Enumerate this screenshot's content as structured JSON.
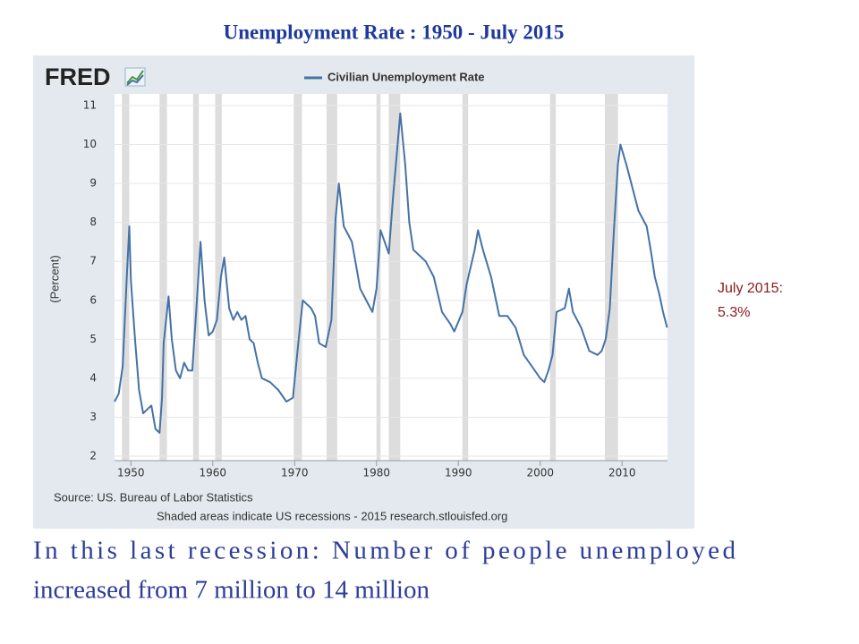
{
  "chart_data": {
    "type": "line",
    "title": "Unemployment Rate : 1950 -  July 2015",
    "brand": "FRED",
    "y_label": "(Percent)",
    "source": "Source: US. Bureau of Labor Statistics",
    "note": "Shaded areas indicate US recessions - 2015 research.stlouisfed.org",
    "annotation": [
      "July 2015:",
      "5.3%"
    ],
    "caption": [
      "In this last recession: Number of people unemployed",
      "increased from 7 million to 14 million"
    ],
    "xlim": [
      1948,
      2015.55
    ],
    "ylim": [
      2,
      11
    ],
    "xticks": [
      1950,
      1960,
      1970,
      1980,
      1990,
      2000,
      2010
    ],
    "yticks": [
      2,
      3,
      4,
      5,
      6,
      7,
      8,
      9,
      10,
      11
    ],
    "grid": true,
    "recession_color": "#dddddd",
    "recessions": [
      [
        1948.9,
        1949.8
      ],
      [
        1953.5,
        1954.4
      ],
      [
        1957.6,
        1958.3
      ],
      [
        1960.3,
        1961.1
      ],
      [
        1969.9,
        1970.9
      ],
      [
        1973.9,
        1975.2
      ],
      [
        1980.0,
        1980.5
      ],
      [
        1981.5,
        1982.9
      ],
      [
        1990.5,
        1991.2
      ],
      [
        2001.2,
        2001.9
      ],
      [
        2007.9,
        2009.5
      ]
    ],
    "x": [
      1948.0,
      1948.5,
      1949.0,
      1949.5,
      1949.8,
      1950.0,
      1950.5,
      1951.0,
      1951.5,
      1952.0,
      1952.5,
      1953.0,
      1953.5,
      1953.8,
      1954.0,
      1954.6,
      1955.0,
      1955.5,
      1956.0,
      1956.5,
      1957.0,
      1957.5,
      1958.0,
      1958.5,
      1959.0,
      1959.5,
      1960.0,
      1960.5,
      1961.0,
      1961.4,
      1962.0,
      1962.5,
      1963.0,
      1963.5,
      1964.0,
      1964.5,
      1965.0,
      1965.5,
      1966.0,
      1967.0,
      1968.0,
      1969.0,
      1969.8,
      1970.5,
      1971.0,
      1972.0,
      1972.5,
      1973.0,
      1973.8,
      1974.5,
      1975.0,
      1975.4,
      1976.0,
      1977.0,
      1977.5,
      1978.0,
      1979.0,
      1979.5,
      1980.0,
      1980.5,
      1981.0,
      1981.5,
      1982.0,
      1982.5,
      1982.9,
      1983.5,
      1984.0,
      1984.5,
      1985.0,
      1986.0,
      1987.0,
      1988.0,
      1989.0,
      1989.5,
      1990.5,
      1991.0,
      1992.0,
      1992.4,
      1993.0,
      1994.0,
      1995.0,
      1996.0,
      1997.0,
      1998.0,
      1999.0,
      2000.0,
      2000.5,
      2001.0,
      2001.5,
      2002.0,
      2003.0,
      2003.5,
      2004.0,
      2005.0,
      2006.0,
      2007.0,
      2007.5,
      2008.0,
      2008.5,
      2009.0,
      2009.5,
      2009.8,
      2010.5,
      2011.0,
      2012.0,
      2013.0,
      2013.5,
      2014.0,
      2014.5,
      2015.0,
      2015.5
    ],
    "series": [
      {
        "name": "Civilian Unemployment Rate",
        "color": "#4572a7",
        "values": [
          3.4,
          3.6,
          4.3,
          6.6,
          7.9,
          6.5,
          5.0,
          3.7,
          3.1,
          3.2,
          3.3,
          2.7,
          2.6,
          3.5,
          4.9,
          6.1,
          5.0,
          4.2,
          4.0,
          4.4,
          4.2,
          4.2,
          5.8,
          7.5,
          6.0,
          5.1,
          5.2,
          5.5,
          6.6,
          7.1,
          5.8,
          5.5,
          5.7,
          5.5,
          5.6,
          5.0,
          4.9,
          4.4,
          4.0,
          3.9,
          3.7,
          3.4,
          3.5,
          5.0,
          6.0,
          5.8,
          5.6,
          4.9,
          4.8,
          5.5,
          8.1,
          9.0,
          7.9,
          7.5,
          6.9,
          6.3,
          5.9,
          5.7,
          6.3,
          7.8,
          7.5,
          7.2,
          8.6,
          9.8,
          10.8,
          9.5,
          8.0,
          7.3,
          7.2,
          7.0,
          6.6,
          5.7,
          5.4,
          5.2,
          5.7,
          6.4,
          7.3,
          7.8,
          7.3,
          6.6,
          5.6,
          5.6,
          5.3,
          4.6,
          4.3,
          4.0,
          3.9,
          4.2,
          4.6,
          5.7,
          5.8,
          6.3,
          5.7,
          5.3,
          4.7,
          4.6,
          4.7,
          5.0,
          5.8,
          7.8,
          9.5,
          10.0,
          9.5,
          9.1,
          8.3,
          7.9,
          7.3,
          6.6,
          6.2,
          5.7,
          5.3
        ]
      }
    ]
  }
}
